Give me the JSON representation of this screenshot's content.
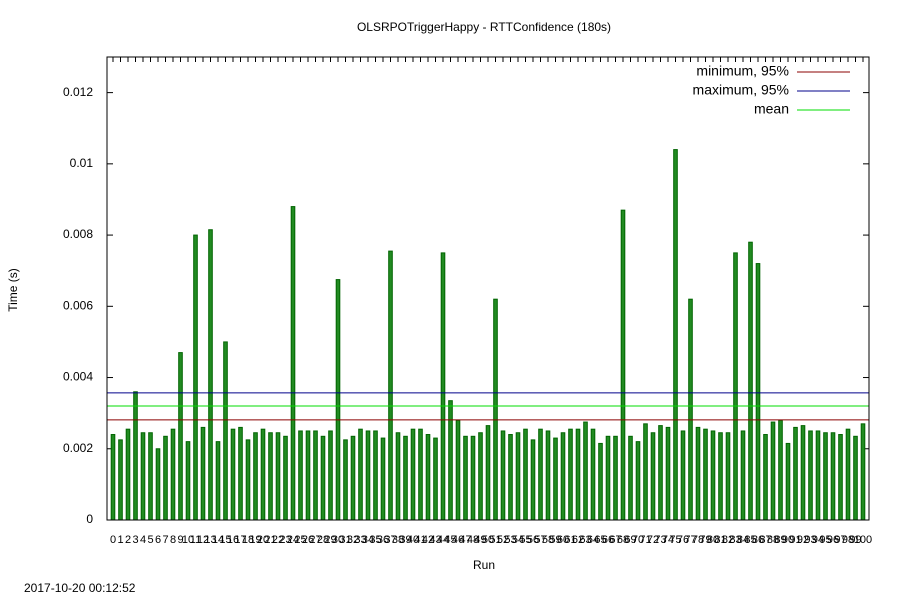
{
  "chart_data": {
    "type": "bar",
    "title": "OLSRPOTriggerHappy - RTTConfidence (180s)",
    "x_label": "Run",
    "y_label": "Time (s)",
    "footer": "2017-10-20 00:12:52",
    "categories": [
      "0",
      "1",
      "2",
      "3",
      "4",
      "5",
      "6",
      "7",
      "8",
      "9",
      "10",
      "11",
      "12",
      "13",
      "14",
      "15",
      "16",
      "17",
      "18",
      "19",
      "20",
      "21",
      "22",
      "23",
      "24",
      "25",
      "26",
      "27",
      "28",
      "29",
      "30",
      "31",
      "32",
      "33",
      "34",
      "35",
      "36",
      "37",
      "38",
      "39",
      "40",
      "41",
      "42",
      "43",
      "44",
      "45",
      "46",
      "47",
      "48",
      "49",
      "50",
      "51",
      "52",
      "53",
      "54",
      "55",
      "56",
      "57",
      "58",
      "59",
      "60",
      "61",
      "62",
      "63",
      "64",
      "65",
      "66",
      "67",
      "68",
      "69",
      "70",
      "71",
      "72",
      "73",
      "74",
      "75",
      "76",
      "77",
      "78",
      "79",
      "80",
      "81",
      "82",
      "83",
      "84",
      "85",
      "86",
      "87",
      "88",
      "89",
      "90",
      "91",
      "92",
      "93",
      "94",
      "95",
      "96",
      "97",
      "98",
      "99",
      "100"
    ],
    "values": [
      0.0024,
      0.00225,
      0.00255,
      0.0036,
      0.00245,
      0.00245,
      0.002,
      0.00235,
      0.00255,
      0.0047,
      0.0022,
      0.008,
      0.0026,
      0.00815,
      0.0022,
      0.005,
      0.00255,
      0.0026,
      0.00225,
      0.00245,
      0.00255,
      0.00245,
      0.00245,
      0.00235,
      0.0088,
      0.0025,
      0.0025,
      0.0025,
      0.00235,
      0.0025,
      0.00675,
      0.00225,
      0.00235,
      0.00255,
      0.0025,
      0.0025,
      0.0023,
      0.00755,
      0.00245,
      0.00235,
      0.00255,
      0.00255,
      0.0024,
      0.0023,
      0.0075,
      0.00335,
      0.0028,
      0.00235,
      0.00235,
      0.00245,
      0.00265,
      0.0062,
      0.0025,
      0.0024,
      0.00245,
      0.00255,
      0.00225,
      0.00255,
      0.0025,
      0.0023,
      0.00245,
      0.00255,
      0.00255,
      0.00275,
      0.00255,
      0.00215,
      0.00235,
      0.00235,
      0.0087,
      0.00235,
      0.0022,
      0.0027,
      0.00245,
      0.00265,
      0.0026,
      0.0104,
      0.0025,
      0.0062,
      0.0026,
      0.00255,
      0.0025,
      0.00245,
      0.00245,
      0.0075,
      0.0025,
      0.0078,
      0.0072,
      0.0024,
      0.00275,
      0.0028,
      0.00215,
      0.0026,
      0.00265,
      0.0025,
      0.0025,
      0.00245,
      0.00245,
      0.0024,
      0.00255,
      0.00235,
      0.0027
    ],
    "color": "#228b22",
    "edge_color": "#006400",
    "lines": [
      {
        "name": "minimum, 95%",
        "color": "#8b0000",
        "value": 0.00281
      },
      {
        "name": "maximum, 95%",
        "color": "#00008b",
        "value": 0.00357
      },
      {
        "name": "mean",
        "color": "#00dd00",
        "value": 0.0032
      }
    ],
    "legend": "upper right",
    "ylim": [
      0,
      0.013
    ],
    "yticks": [
      0,
      0.002,
      0.004,
      0.006,
      0.008,
      0.01,
      0.012
    ]
  }
}
